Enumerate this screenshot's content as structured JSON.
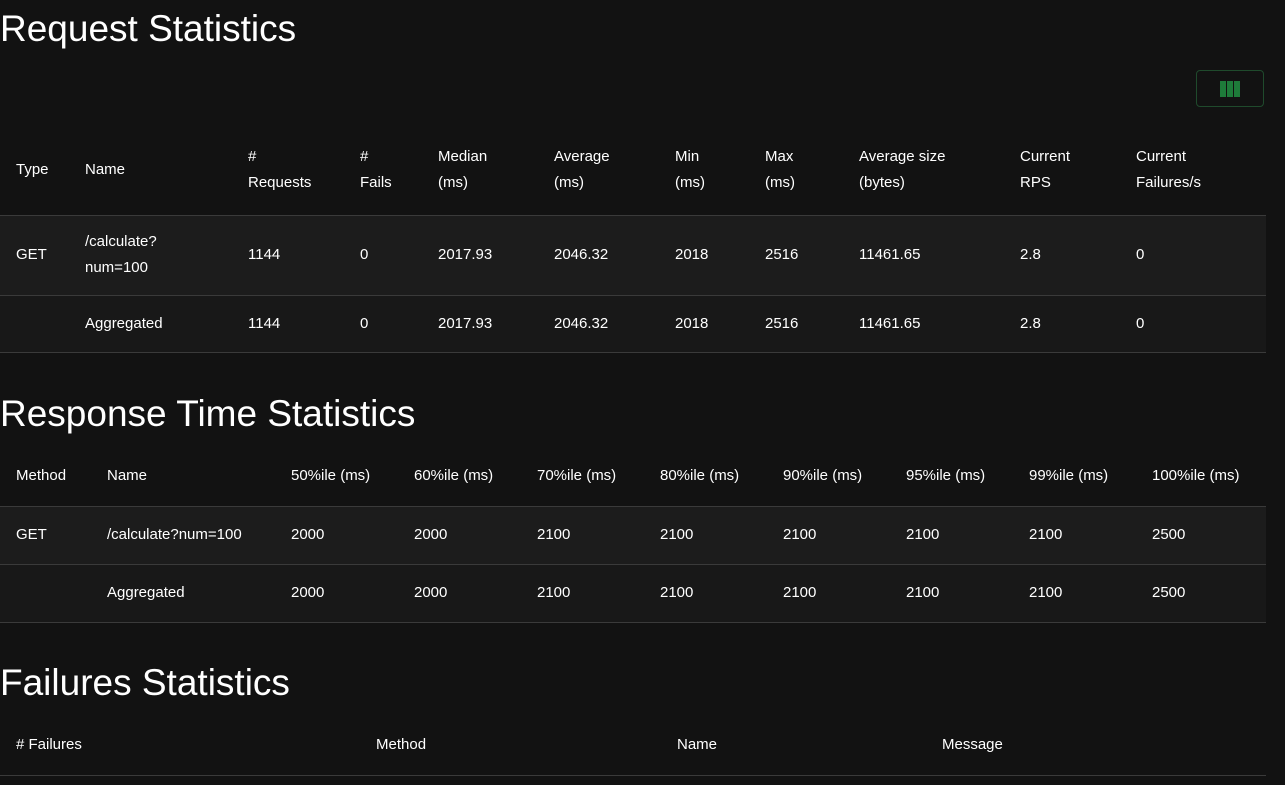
{
  "request_statistics": {
    "title": "Request Statistics",
    "columns_button_icon": "columns-icon",
    "accent_color": "#1e7b3a",
    "headers": [
      [
        "#",
        "Requests"
      ],
      [
        "#",
        "Fails"
      ],
      [
        "Median",
        "(ms)"
      ],
      [
        "Average",
        "(ms)"
      ],
      [
        "Min",
        "(ms)"
      ],
      [
        "Max",
        "(ms)"
      ],
      [
        "Average size",
        "(bytes)"
      ],
      [
        "Current",
        "RPS"
      ],
      [
        "Current",
        "Failures/s"
      ]
    ],
    "header_type": "Type",
    "header_name": "Name",
    "rows": [
      {
        "type": "GET",
        "name_line1": "/calculate?",
        "name_line2": "num=100",
        "requests": "1144",
        "fails": "0",
        "median": "2017.93",
        "average": "2046.32",
        "min": "2018",
        "max": "2516",
        "avg_size": "11461.65",
        "rps": "2.8",
        "failures_s": "0"
      },
      {
        "type": "",
        "name": "Aggregated",
        "requests": "1144",
        "fails": "0",
        "median": "2017.93",
        "average": "2046.32",
        "min": "2018",
        "max": "2516",
        "avg_size": "11461.65",
        "rps": "2.8",
        "failures_s": "0"
      }
    ]
  },
  "response_time_statistics": {
    "title": "Response Time Statistics",
    "headers": [
      "Method",
      "Name",
      "50%ile (ms)",
      "60%ile (ms)",
      "70%ile (ms)",
      "80%ile (ms)",
      "90%ile (ms)",
      "95%ile (ms)",
      "99%ile (ms)",
      "100%ile (ms)"
    ],
    "rows": [
      [
        "GET",
        "/calculate?num=100",
        "2000",
        "2000",
        "2100",
        "2100",
        "2100",
        "2100",
        "2100",
        "2500"
      ],
      [
        "",
        "Aggregated",
        "2000",
        "2000",
        "2100",
        "2100",
        "2100",
        "2100",
        "2100",
        "2500"
      ]
    ]
  },
  "failures_statistics": {
    "title": "Failures Statistics",
    "headers": [
      "# Failures",
      "Method",
      "Name",
      "Message"
    ]
  }
}
